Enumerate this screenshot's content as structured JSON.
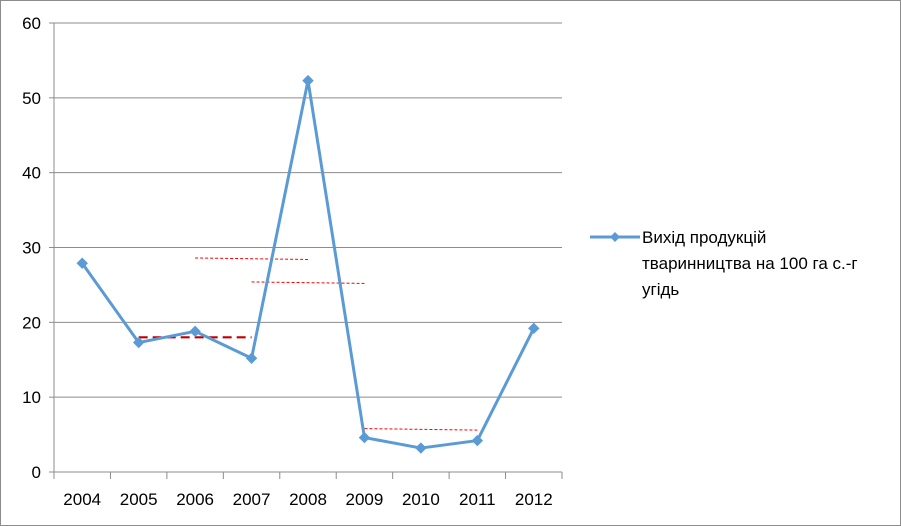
{
  "chart_data": {
    "type": "line",
    "categories": [
      "2004",
      "2005",
      "2006",
      "2007",
      "2008",
      "2009",
      "2010",
      "2011",
      "2012"
    ],
    "series": [
      {
        "name": "Вихід продукцій тваринництва на 100 га с.-г угідь",
        "values": [
          27.9,
          17.3,
          18.8,
          15.2,
          52.3,
          4.6,
          3.2,
          4.2,
          19.2
        ],
        "color": "#5b9bd5",
        "marker": "diamond"
      }
    ],
    "legend_lines": [
      "Вихід продукцій",
      "тваринництва на 100 га с.-г",
      "угідь"
    ],
    "legend_position": "right",
    "yticks": [
      "0",
      "10",
      "20",
      "30",
      "40",
      "50",
      "60"
    ],
    "ylim": [
      0,
      60
    ],
    "grid": "horizontal",
    "title": "",
    "xlabel": "",
    "ylabel": "",
    "annotations": [
      {
        "kind": "dashed-line",
        "color": "#c00000",
        "style": "thick",
        "x_from": "2005",
        "x_to": "2007",
        "y": 18.0
      },
      {
        "kind": "dashed-line",
        "color": "#ff0000",
        "style": "thin",
        "x_from": "2006",
        "x_to": "2008",
        "y": 28.6
      },
      {
        "kind": "dashed-line",
        "color": "#ff0000",
        "style": "thin",
        "x_from": "2007",
        "x_to": "2009",
        "y": 25.4
      },
      {
        "kind": "dashed-line",
        "color": "#ff0000",
        "style": "thin",
        "x_from": "2009",
        "x_to": "2011",
        "y": 5.8
      }
    ]
  }
}
